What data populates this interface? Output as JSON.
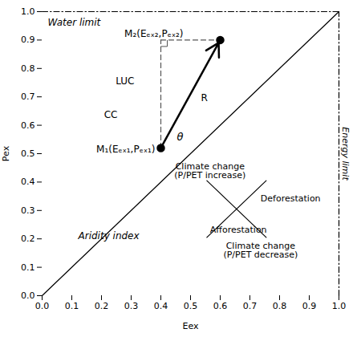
{
  "chart_data": {
    "type": "scatter",
    "xlabel": "Eex",
    "ylabel": "Pex",
    "xlim": [
      0,
      1
    ],
    "ylim": [
      0,
      1
    ],
    "xticks": [
      {
        "value": 0,
        "label": "0.0"
      },
      0.1,
      0.2,
      0.3,
      0.4,
      0.5,
      0.6,
      0.7,
      0.8,
      0.9,
      {
        "value": 1,
        "label": "1.0"
      }
    ],
    "yticks": [
      {
        "value": 0,
        "label": "0.0"
      },
      0.1,
      0.2,
      0.3,
      0.4,
      0.5,
      0.6,
      0.7,
      0.8,
      0.9,
      {
        "value": 1,
        "label": "1.0"
      }
    ],
    "points": {
      "x": [
        0.4,
        0.6
      ],
      "y": [
        0.52,
        0.9
      ],
      "labels": [
        "M₁(Eₑₓ₁,Pₑₓ₁)",
        "M₂(Eₑₓ₂,Pₑₓ₂)"
      ],
      "color": "#000000",
      "marker": "circle"
    },
    "segments": [
      {
        "type": "line",
        "x": [
          0,
          1
        ],
        "y": [
          0,
          1
        ],
        "color": "#000000",
        "line_style": "solid"
      },
      {
        "type": "line",
        "x": [
          0.4,
          0.4
        ],
        "y": [
          0.52,
          0.9
        ],
        "color": "#555555",
        "line_style": "dashed"
      },
      {
        "type": "line",
        "x": [
          0.4,
          0.6
        ],
        "y": [
          0.9,
          0.9
        ],
        "color": "#555555",
        "line_style": "dashed"
      },
      {
        "type": "arrow",
        "x": [
          0.4,
          0.6
        ],
        "y": [
          0.52,
          0.9
        ],
        "color": "#000000",
        "line_style": "solid"
      },
      {
        "type": "line",
        "x": [
          0,
          1
        ],
        "y": [
          1,
          1
        ],
        "color": "#000000",
        "line_style": "dashdot"
      },
      {
        "type": "line",
        "x": [
          1,
          1
        ],
        "y": [
          0,
          1
        ],
        "color": "#000000",
        "line_style": "dashdot"
      },
      {
        "type": "line",
        "x": [
          0.555,
          0.755
        ],
        "y": [
          0.405,
          0.205
        ],
        "color": "#000000",
        "line_style": "solid"
      },
      {
        "type": "line",
        "x": [
          0.555,
          0.755
        ],
        "y": [
          0.205,
          0.405
        ],
        "color": "#000000",
        "line_style": "solid"
      }
    ],
    "annotations": {
      "luc": "LUC",
      "cc": "CC",
      "r": "R",
      "theta": "θ",
      "aridity": "Aridity index",
      "water_limit": "Water limit",
      "energy_limit": "Energy limit",
      "cc_increase": "Climate change\n(P/PET increase)",
      "cc_decrease": "Climate change\n(P/PET decrease)",
      "deforestation": "Deforestation",
      "afforestation": "Afforestation"
    }
  }
}
